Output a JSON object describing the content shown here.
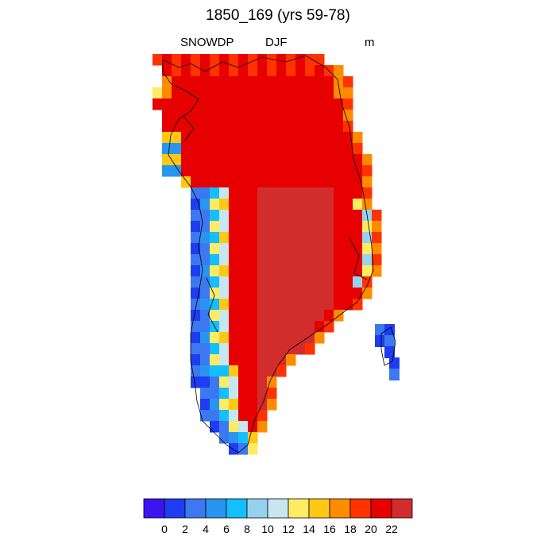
{
  "title": "1850_169 (yrs 59-78)",
  "variable": "SNOWDP",
  "season": "DJF",
  "units": "m",
  "colorbar": {
    "colors": [
      "#3c14f0",
      "#1e3cf0",
      "#3c78f0",
      "#2896f0",
      "#14beff",
      "#96d2f0",
      "#c8e6f0",
      "#ffeb64",
      "#ffc814",
      "#ff8c00",
      "#ff3200",
      "#e60000",
      "#d22d2d"
    ],
    "tick_labels": [
      "0",
      "2",
      "4",
      "6",
      "8",
      "10",
      "12",
      "14",
      "16",
      "18",
      "20",
      "22"
    ]
  }
}
